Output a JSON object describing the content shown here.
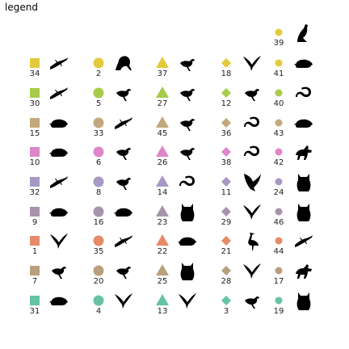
{
  "title": "legend",
  "colors": {
    "yellow": "#E3CA3C",
    "green": "#A7CC4A",
    "tan": "#C2A87C",
    "pink": "#DE86C9",
    "lavender": "#A898C4",
    "mauve": "#A893AD",
    "orange": "#E58B68",
    "khaki": "#B9A07C",
    "teal": "#66C2A5"
  },
  "chart_data": {
    "type": "legend-grid",
    "columns": [
      {
        "shape": "square",
        "entries": [
          {
            "id": "34",
            "color": "yellow",
            "silhouette": "lizard"
          },
          {
            "id": "30",
            "color": "green",
            "silhouette": "lizard"
          },
          {
            "id": "15",
            "color": "tan",
            "silhouette": "rodent"
          },
          {
            "id": "10",
            "color": "pink",
            "silhouette": "rodent"
          },
          {
            "id": "32",
            "color": "lavender",
            "silhouette": "lizard"
          },
          {
            "id": "9",
            "color": "mauve",
            "silhouette": "rodent"
          },
          {
            "id": "1",
            "color": "orange",
            "silhouette": "bird-flying"
          },
          {
            "id": "7",
            "color": "khaki",
            "silhouette": "bird"
          },
          {
            "id": "31",
            "color": "teal",
            "silhouette": "rodent"
          }
        ]
      },
      {
        "shape": "circle",
        "entries": [
          {
            "id": "2",
            "color": "yellow",
            "silhouette": "squirrel"
          },
          {
            "id": "5",
            "color": "green",
            "silhouette": "bird"
          },
          {
            "id": "33",
            "color": "tan",
            "silhouette": "lizard"
          },
          {
            "id": "6",
            "color": "pink",
            "silhouette": "bird"
          },
          {
            "id": "8",
            "color": "lavender",
            "silhouette": "bird"
          },
          {
            "id": "16",
            "color": "mauve",
            "silhouette": "rodent"
          },
          {
            "id": "35",
            "color": "orange",
            "silhouette": "lizard"
          },
          {
            "id": "20",
            "color": "khaki",
            "silhouette": "bird"
          },
          {
            "id": "4",
            "color": "teal",
            "silhouette": "bird-flying"
          }
        ]
      },
      {
        "shape": "triangle",
        "entries": [
          {
            "id": "37",
            "color": "yellow",
            "silhouette": "bird"
          },
          {
            "id": "27",
            "color": "green",
            "silhouette": "bird"
          },
          {
            "id": "45",
            "color": "tan",
            "silhouette": "bird"
          },
          {
            "id": "26",
            "color": "pink",
            "silhouette": "bird"
          },
          {
            "id": "14",
            "color": "lavender",
            "silhouette": "snake"
          },
          {
            "id": "23",
            "color": "mauve",
            "silhouette": "owl"
          },
          {
            "id": "22",
            "color": "orange",
            "silhouette": "rodent"
          },
          {
            "id": "25",
            "color": "khaki",
            "silhouette": "owl"
          },
          {
            "id": "13",
            "color": "teal",
            "silhouette": "bird-flying"
          }
        ]
      },
      {
        "shape": "diamond",
        "entries": [
          {
            "id": "18",
            "color": "yellow",
            "silhouette": "bird-flying"
          },
          {
            "id": "12",
            "color": "green",
            "silhouette": "bird"
          },
          {
            "id": "36",
            "color": "tan",
            "silhouette": "snake"
          },
          {
            "id": "38",
            "color": "pink",
            "silhouette": "snake"
          },
          {
            "id": "11",
            "color": "lavender",
            "silhouette": "eagle"
          },
          {
            "id": "29",
            "color": "mauve",
            "silhouette": "bird-flying"
          },
          {
            "id": "21",
            "color": "orange",
            "silhouette": "heron"
          },
          {
            "id": "28",
            "color": "khaki",
            "silhouette": "bird-flying"
          },
          {
            "id": "3",
            "color": "teal",
            "silhouette": "bird"
          }
        ]
      },
      {
        "shape": "circle-small",
        "entries": [
          {
            "id": "39",
            "color": "yellow",
            "silhouette": "weasel"
          },
          {
            "id": "41",
            "color": "yellow",
            "silhouette": "rodent"
          },
          {
            "id": "40",
            "color": "green",
            "silhouette": "snake"
          },
          {
            "id": "43",
            "color": "tan",
            "silhouette": "rodent"
          },
          {
            "id": "42",
            "color": "pink",
            "silhouette": "wolf"
          },
          {
            "id": "24",
            "color": "lavender",
            "silhouette": "owl"
          },
          {
            "id": "46",
            "color": "mauve",
            "silhouette": "owl"
          },
          {
            "id": "44",
            "color": "orange",
            "silhouette": "lizard"
          },
          {
            "id": "17",
            "color": "khaki",
            "silhouette": "wolf"
          },
          {
            "id": "19",
            "color": "teal",
            "silhouette": "owl"
          }
        ]
      }
    ]
  }
}
